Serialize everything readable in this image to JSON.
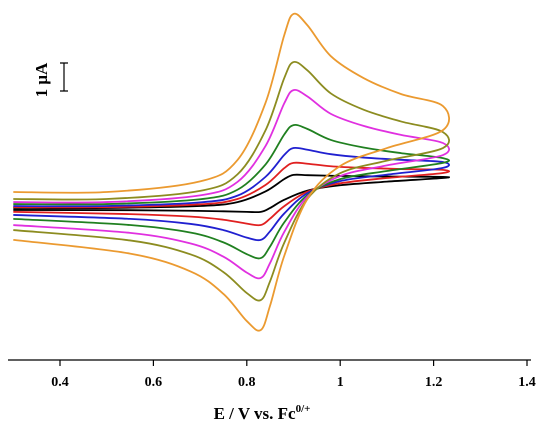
{
  "chart_data": {
    "type": "line",
    "xlabel": "E / V vs. Fc",
    "xlabel_sup": "0/+",
    "scale_bar": {
      "label": "1 μA",
      "value": 1
    },
    "x": [
      0.3,
      0.5,
      0.7,
      0.78,
      0.84,
      0.88,
      0.9,
      0.93,
      0.98,
      1.05,
      1.13,
      1.22,
      1.22,
      1.1,
      1.0,
      0.93,
      0.88,
      0.85,
      0.83,
      0.8,
      0.75,
      0.68,
      0.55,
      0.3
    ],
    "xlim": [
      0.3,
      1.4
    ],
    "xticks": [
      0.4,
      0.6,
      0.8,
      1.0,
      1.2,
      1.4
    ],
    "ylim": [
      -5.5,
      7
    ],
    "series": [
      {
        "color": "#000000",
        "values": [
          -0.07,
          -0.07,
          0,
          0.14,
          0.52,
          0.96,
          1.11,
          1.1,
          1.08,
          1.06,
          1.05,
          1.04,
          1.0,
          0.87,
          0.74,
          0.55,
          0.22,
          -0.07,
          -0.21,
          -0.21,
          -0.19,
          -0.17,
          -0.15,
          -0.14
        ]
      },
      {
        "color": "#e02020",
        "values": [
          -0.04,
          -0.04,
          0.06,
          0.25,
          0.75,
          1.35,
          1.54,
          1.51,
          1.42,
          1.36,
          1.32,
          1.29,
          1.18,
          1.0,
          0.81,
          0.51,
          -0.01,
          -0.45,
          -0.68,
          -0.63,
          -0.49,
          -0.38,
          -0.29,
          -0.21
        ]
      },
      {
        "color": "#2020d0",
        "values": [
          0,
          0,
          0.13,
          0.37,
          1.04,
          1.82,
          2.07,
          2.01,
          1.85,
          1.73,
          1.65,
          1.57,
          1.36,
          1.12,
          0.89,
          0.46,
          -0.27,
          -0.9,
          -1.21,
          -1.13,
          -0.86,
          -0.64,
          -0.46,
          -0.32
        ]
      },
      {
        "color": "#208020",
        "values": [
          0.07,
          0.07,
          0.24,
          0.58,
          1.48,
          2.55,
          2.89,
          2.75,
          2.36,
          2.09,
          1.89,
          1.71,
          1.54,
          1.25,
          0.96,
          0.39,
          -0.59,
          -1.44,
          -1.86,
          -1.72,
          -1.3,
          -0.95,
          -0.68,
          -0.46
        ]
      },
      {
        "color": "#e030e0",
        "values": [
          0.14,
          0.14,
          0.38,
          0.86,
          2.14,
          3.66,
          4.14,
          3.91,
          3.29,
          2.86,
          2.54,
          2.25,
          1.82,
          1.45,
          1.07,
          0.34,
          -0.93,
          -2.03,
          -2.57,
          -2.38,
          -1.81,
          -1.34,
          -0.96,
          -0.68
        ]
      },
      {
        "color": "#8c8c20",
        "values": [
          0.25,
          0.25,
          0.54,
          1.13,
          2.7,
          4.56,
          5.14,
          4.84,
          4.02,
          3.44,
          3.02,
          2.64,
          2.07,
          1.62,
          1.17,
          0.26,
          -1.32,
          -2.68,
          -3.36,
          -3.11,
          -2.36,
          -1.73,
          -1.23,
          -0.86
        ]
      },
      {
        "color": "#eb9a30",
        "values": [
          0.5,
          0.5,
          0.88,
          1.64,
          3.68,
          6.09,
          6.86,
          6.45,
          5.35,
          4.57,
          4.0,
          3.57,
          2.71,
          2.07,
          1.43,
          0.26,
          -1.79,
          -3.55,
          -4.43,
          -4.11,
          -3.14,
          -2.34,
          -1.7,
          -1.21
        ]
      }
    ]
  }
}
